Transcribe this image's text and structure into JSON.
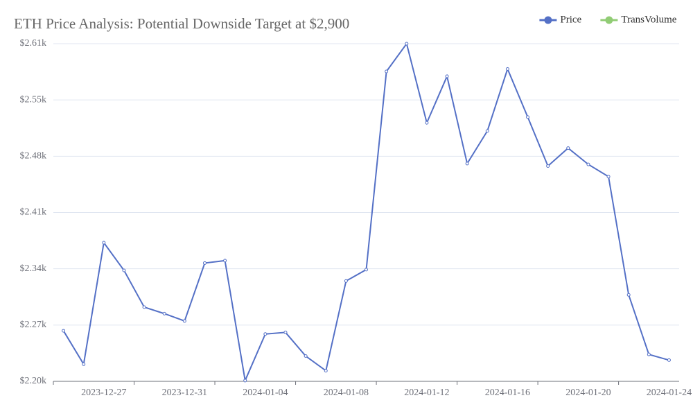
{
  "chart_data": {
    "type": "line",
    "title": "ETH Price Analysis: Potential Downside Target at $2,900",
    "categories": [
      null,
      null,
      "2023-12-27",
      null,
      null,
      null,
      "2023-12-31",
      null,
      null,
      null,
      "2024-01-04",
      null,
      null,
      null,
      "2024-01-08",
      null,
      null,
      null,
      "2024-01-12",
      null,
      null,
      null,
      "2024-01-16",
      null,
      null,
      null,
      "2024-01-20",
      null,
      null,
      null,
      "2024-01-24"
    ],
    "series": [
      {
        "name": "Price",
        "color": "#5470c6",
        "values": [
          2262,
          2221,
          2370,
          2336,
          2291,
          2283,
          2274,
          2345,
          2348,
          2201,
          2258,
          2260,
          2231,
          2213,
          2323,
          2337,
          2580,
          2614,
          2517,
          2574,
          2467,
          2507,
          2583,
          2524,
          2464,
          2486,
          2466,
          2451,
          2306,
          2233,
          2226
        ]
      },
      {
        "name": "TransVolume",
        "color": "#91cc75",
        "values": [
          null,
          null,
          null,
          null,
          null,
          null,
          null,
          null,
          null,
          null,
          null,
          null,
          null,
          null,
          null,
          null,
          null,
          null,
          null,
          null,
          null,
          null,
          null,
          null,
          null,
          null,
          null,
          null,
          null,
          null,
          null
        ]
      }
    ],
    "ylim": [
      2200,
      2614
    ],
    "yticks": [
      {
        "value": 2200,
        "label": "$2.20k"
      },
      {
        "value": 2269,
        "label": "$2.27k"
      },
      {
        "value": 2338,
        "label": "$2.34k"
      },
      {
        "value": 2407,
        "label": "$2.41k"
      },
      {
        "value": 2476,
        "label": "$2.48k"
      },
      {
        "value": 2545,
        "label": "$2.55k"
      },
      {
        "value": 2614,
        "label": "$2.61k"
      }
    ],
    "grid": true,
    "legend": "top-right"
  }
}
